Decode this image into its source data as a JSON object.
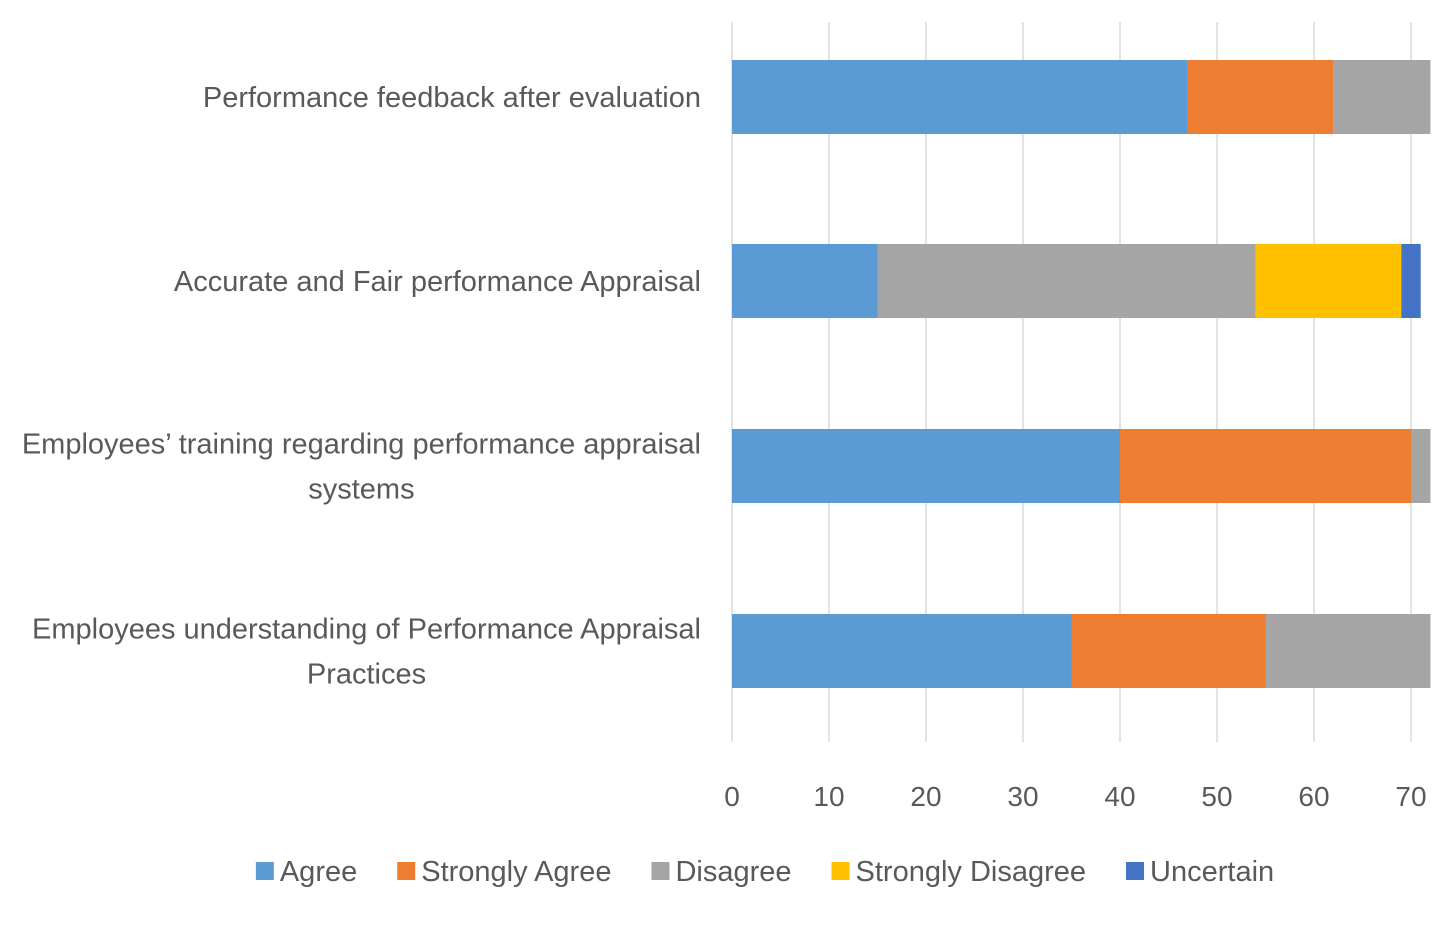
{
  "chart_data": {
    "type": "bar",
    "orientation": "horizontal",
    "stacked": true,
    "title": "",
    "xlabel": "",
    "ylabel": "",
    "categories": [
      "Performance feedback after evaluation",
      "Accurate and Fair performance Appraisal",
      "Employees’ training regarding performance appraisal systems",
      "Employees understanding of Performance Appraisal Practices"
    ],
    "category_lines": [
      [
        "Performance feedback after evaluation"
      ],
      [
        "Accurate and Fair performance Appraisal"
      ],
      [
        "Employees’ training regarding performance appraisal",
        "systems"
      ],
      [
        "Employees understanding of Performance Appraisal",
        "Practices"
      ]
    ],
    "series": [
      {
        "name": "Agree",
        "color": "#5B9BD5",
        "values": [
          47,
          15,
          40,
          35
        ]
      },
      {
        "name": "Strongly Agree",
        "color": "#ED7D31",
        "values": [
          15,
          0,
          30,
          20
        ]
      },
      {
        "name": "Disagree",
        "color": "#A5A5A5",
        "values": [
          10,
          39,
          2,
          17
        ]
      },
      {
        "name": "Strongly Disagree",
        "color": "#FFC000",
        "values": [
          0,
          15,
          0,
          0
        ]
      },
      {
        "name": "Uncertain",
        "color": "#4472C4",
        "values": [
          0,
          2,
          0,
          0
        ]
      }
    ],
    "xlim": [
      0,
      72
    ],
    "xticks": [
      "0",
      "10",
      "20",
      "30",
      "40",
      "50",
      "60",
      "70"
    ],
    "tick_values": [
      0,
      10,
      20,
      30,
      40,
      50,
      60,
      70
    ],
    "grid": true,
    "legend_position": "bottom"
  }
}
